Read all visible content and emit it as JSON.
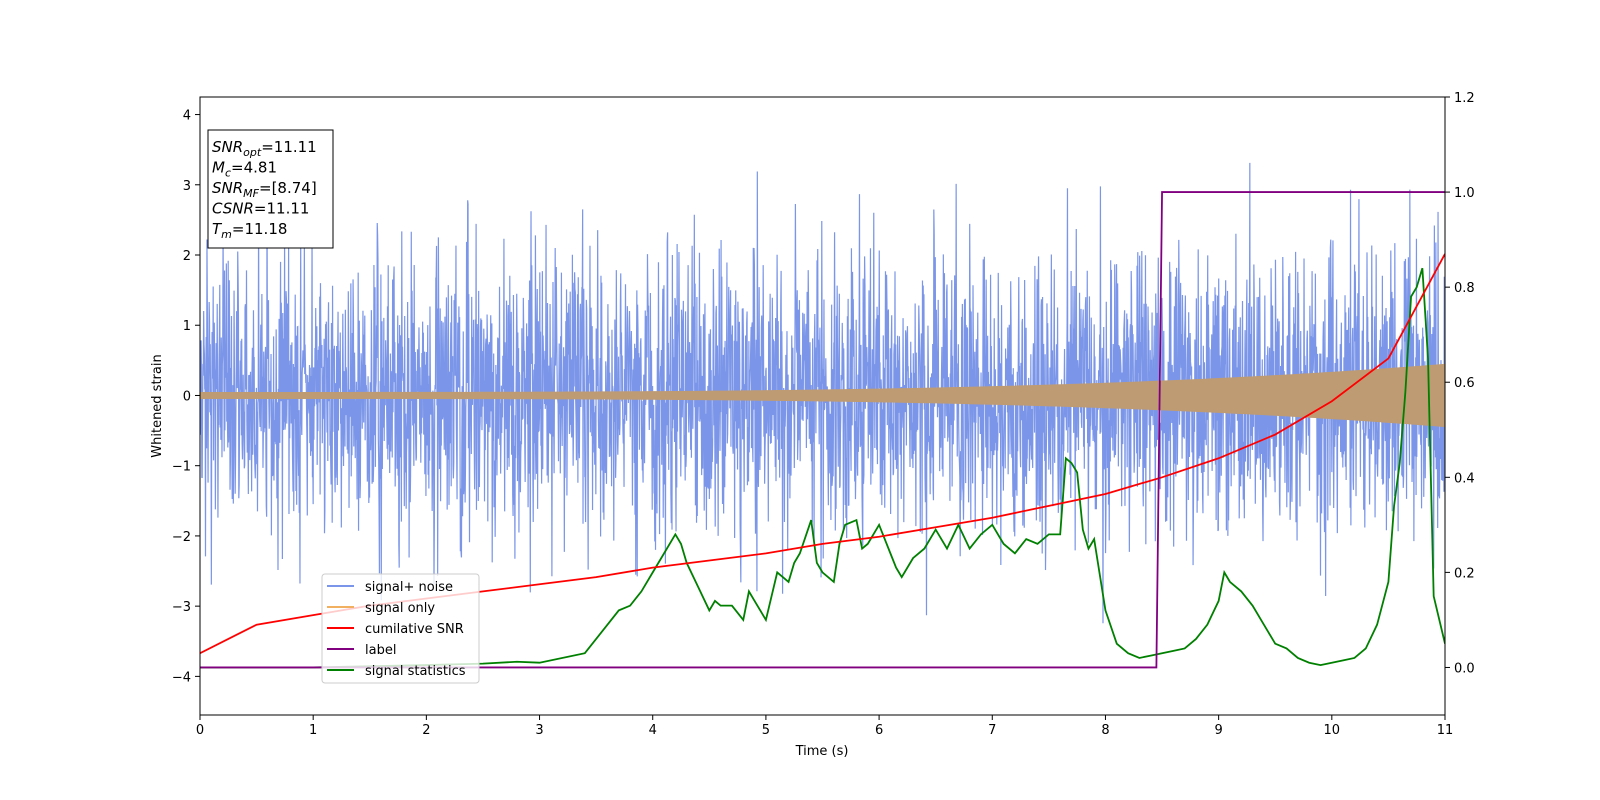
{
  "chart_data": {
    "type": "line",
    "xlabel": "Time (s)",
    "ylabel": "Whitened strain",
    "xlim": [
      0,
      11
    ],
    "ylim_left": [
      -4.55,
      4.25
    ],
    "ylim_right": [
      -0.1,
      1.2
    ],
    "x_ticks": [
      0,
      1,
      2,
      3,
      4,
      5,
      6,
      7,
      8,
      9,
      10,
      11
    ],
    "y_ticks_left": [
      -4,
      -3,
      -2,
      -1,
      0,
      1,
      2,
      3,
      4
    ],
    "y_ticks_right": [
      "0.0",
      "0.2",
      "0.4",
      "0.6",
      "0.8",
      "1.0",
      "1.2"
    ],
    "grid": false,
    "legend_position": "lower-left",
    "legend": [
      "signal+ noise",
      "signal only",
      "cumilative SNR",
      "label",
      "signal statistics"
    ],
    "colors": {
      "signal_noise": "#7b96e8",
      "signal_only": "#f0b060",
      "signal_only_fill": "#bf9b73",
      "cumulative_snr": "#ff0000",
      "label": "#800080",
      "signal_statistics": "#008000"
    },
    "info_box": [
      {
        "base": "SNR",
        "sub": "opt",
        "value": "=11.11"
      },
      {
        "base": "M",
        "sub": "c",
        "value": "=4.81"
      },
      {
        "base": "SNR",
        "sub": "MF",
        "value": "=[8.74]"
      },
      {
        "base": "CSNR",
        "sub": "",
        "value": "=11.11"
      },
      {
        "base": "T",
        "sub": "m",
        "value": "=11.18"
      }
    ],
    "series": [
      {
        "name": "cumilative SNR",
        "axis": "right",
        "x": [
          0,
          0.5,
          1,
          1.5,
          2,
          2.5,
          3,
          3.5,
          4,
          4.5,
          5,
          5.5,
          6,
          6.5,
          7,
          7.5,
          8,
          8.5,
          9,
          9.5,
          10,
          10.5,
          11
        ],
        "y": [
          0.03,
          0.09,
          0.11,
          0.13,
          0.145,
          0.16,
          0.175,
          0.19,
          0.21,
          0.225,
          0.24,
          0.26,
          0.275,
          0.295,
          0.315,
          0.34,
          0.365,
          0.4,
          0.44,
          0.49,
          0.56,
          0.65,
          0.87
        ]
      },
      {
        "name": "label",
        "axis": "right",
        "x": [
          0,
          8.45,
          8.5,
          11
        ],
        "y": [
          0,
          0,
          1,
          1
        ]
      },
      {
        "name": "signal statistics",
        "axis": "right",
        "x": [
          0,
          1,
          2,
          2.5,
          2.8,
          3,
          3.4,
          3.5,
          3.6,
          3.7,
          3.8,
          3.9,
          4.0,
          4.1,
          4.2,
          4.25,
          4.3,
          4.4,
          4.5,
          4.55,
          4.6,
          4.7,
          4.8,
          4.85,
          4.9,
          5.0,
          5.1,
          5.2,
          5.25,
          5.3,
          5.4,
          5.45,
          5.5,
          5.6,
          5.65,
          5.7,
          5.8,
          5.85,
          5.9,
          6.0,
          6.1,
          6.15,
          6.2,
          6.3,
          6.4,
          6.5,
          6.6,
          6.7,
          6.8,
          6.9,
          7.0,
          7.1,
          7.2,
          7.3,
          7.4,
          7.5,
          7.6,
          7.65,
          7.7,
          7.75,
          7.8,
          7.85,
          7.9,
          8.0,
          8.1,
          8.2,
          8.3,
          8.4,
          8.5,
          8.6,
          8.7,
          8.8,
          8.9,
          9.0,
          9.05,
          9.1,
          9.2,
          9.3,
          9.4,
          9.5,
          9.6,
          9.7,
          9.8,
          9.9,
          10.0,
          10.1,
          10.2,
          10.3,
          10.4,
          10.5,
          10.55,
          10.6,
          10.65,
          10.7,
          10.75,
          10.8,
          10.85,
          10.9,
          11.0
        ],
        "y": [
          0.0,
          0.0,
          0.005,
          0.008,
          0.012,
          0.01,
          0.03,
          0.06,
          0.09,
          0.12,
          0.13,
          0.16,
          0.2,
          0.24,
          0.28,
          0.26,
          0.22,
          0.17,
          0.12,
          0.14,
          0.13,
          0.13,
          0.1,
          0.16,
          0.14,
          0.1,
          0.2,
          0.18,
          0.22,
          0.24,
          0.31,
          0.22,
          0.2,
          0.18,
          0.26,
          0.3,
          0.31,
          0.25,
          0.26,
          0.3,
          0.24,
          0.21,
          0.19,
          0.23,
          0.25,
          0.29,
          0.25,
          0.3,
          0.25,
          0.28,
          0.3,
          0.26,
          0.24,
          0.27,
          0.26,
          0.28,
          0.28,
          0.44,
          0.43,
          0.41,
          0.29,
          0.25,
          0.27,
          0.12,
          0.05,
          0.03,
          0.02,
          0.025,
          0.03,
          0.035,
          0.04,
          0.06,
          0.09,
          0.14,
          0.2,
          0.18,
          0.16,
          0.13,
          0.09,
          0.05,
          0.04,
          0.02,
          0.01,
          0.005,
          0.01,
          0.015,
          0.02,
          0.04,
          0.09,
          0.18,
          0.34,
          0.43,
          0.58,
          0.78,
          0.8,
          0.84,
          0.65,
          0.15,
          0.05
        ]
      }
    ]
  }
}
